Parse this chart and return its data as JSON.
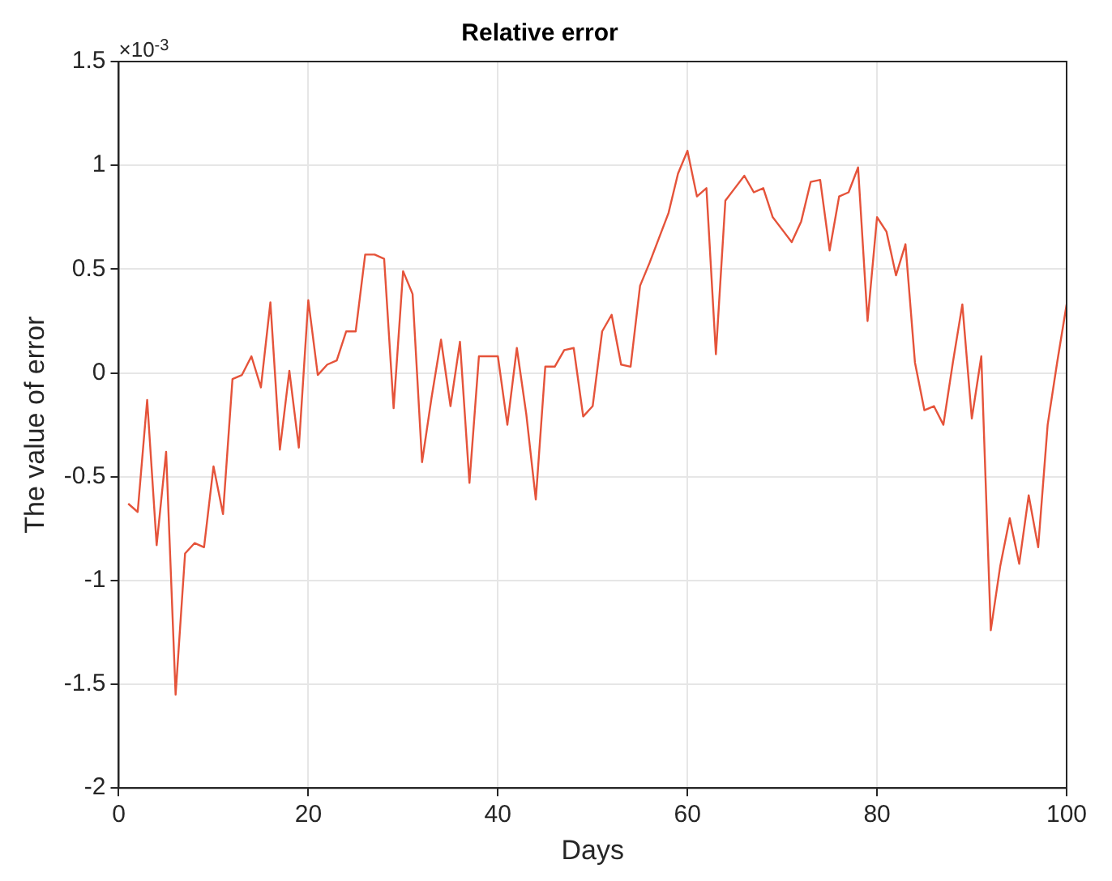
{
  "chart_data": {
    "type": "line",
    "title": "Relative error",
    "xlabel": "Days",
    "ylabel": "The value of error",
    "annotations": [
      "×10$^{-3}$"
    ],
    "x": [
      1,
      2,
      3,
      4,
      5,
      6,
      7,
      8,
      9,
      10,
      11,
      12,
      13,
      14,
      15,
      16,
      17,
      18,
      19,
      20,
      21,
      22,
      23,
      24,
      25,
      26,
      27,
      28,
      29,
      30,
      31,
      32,
      33,
      34,
      35,
      36,
      37,
      38,
      39,
      40,
      41,
      42,
      43,
      44,
      45,
      46,
      47,
      48,
      49,
      50,
      51,
      52,
      53,
      54,
      55,
      56,
      57,
      58,
      59,
      60,
      61,
      62,
      63,
      64,
      65,
      66,
      67,
      68,
      69,
      70,
      71,
      72,
      73,
      74,
      75,
      76,
      77,
      78,
      79,
      80,
      81,
      82,
      83,
      84,
      85,
      86,
      87,
      88,
      89,
      90,
      91,
      92,
      93,
      94,
      95,
      96,
      97,
      98,
      99,
      100
    ],
    "series": [
      {
        "color": "#e5533a",
        "values": [
          -0.63,
          -0.67,
          -0.13,
          -0.83,
          -0.38,
          -1.55,
          -0.87,
          -0.82,
          -0.84,
          -0.45,
          -0.68,
          -0.03,
          -0.01,
          0.08,
          -0.07,
          0.34,
          -0.37,
          0.01,
          -0.36,
          0.35,
          -0.01,
          0.04,
          0.06,
          0.2,
          0.2,
          0.57,
          0.57,
          0.55,
          -0.17,
          0.49,
          0.38,
          -0.43,
          -0.12,
          0.16,
          -0.16,
          0.15,
          -0.53,
          0.08,
          0.08,
          0.08,
          -0.25,
          0.12,
          -0.2,
          -0.61,
          0.03,
          0.03,
          0.11,
          0.12,
          -0.21,
          -0.16,
          0.2,
          0.28,
          0.04,
          0.03,
          0.42,
          0.53,
          0.65,
          0.77,
          0.96,
          1.07,
          0.85,
          0.89,
          0.09,
          0.83,
          0.89,
          0.95,
          0.87,
          0.89,
          0.75,
          0.69,
          0.63,
          0.73,
          0.92,
          0.93,
          0.59,
          0.85,
          0.87,
          0.99,
          0.25,
          0.75,
          0.68,
          0.47,
          0.62,
          0.05,
          -0.18,
          -0.16,
          -0.25,
          0.05,
          0.33,
          -0.22,
          0.08,
          -1.24,
          -0.93,
          -0.7,
          -0.92,
          -0.59,
          -0.84,
          -0.25,
          0.05,
          0.33
        ]
      }
    ],
    "xlim": [
      0,
      100
    ],
    "xticks": [
      0,
      20,
      40,
      60,
      80,
      100
    ],
    "ylim": [
      -2,
      1.5
    ],
    "yticks": [
      -2,
      -1.5,
      -1,
      -0.5,
      0,
      0.5,
      1,
      1.5
    ],
    "grid": true,
    "legend": false,
    "marker": "none",
    "line_style": "solid"
  }
}
